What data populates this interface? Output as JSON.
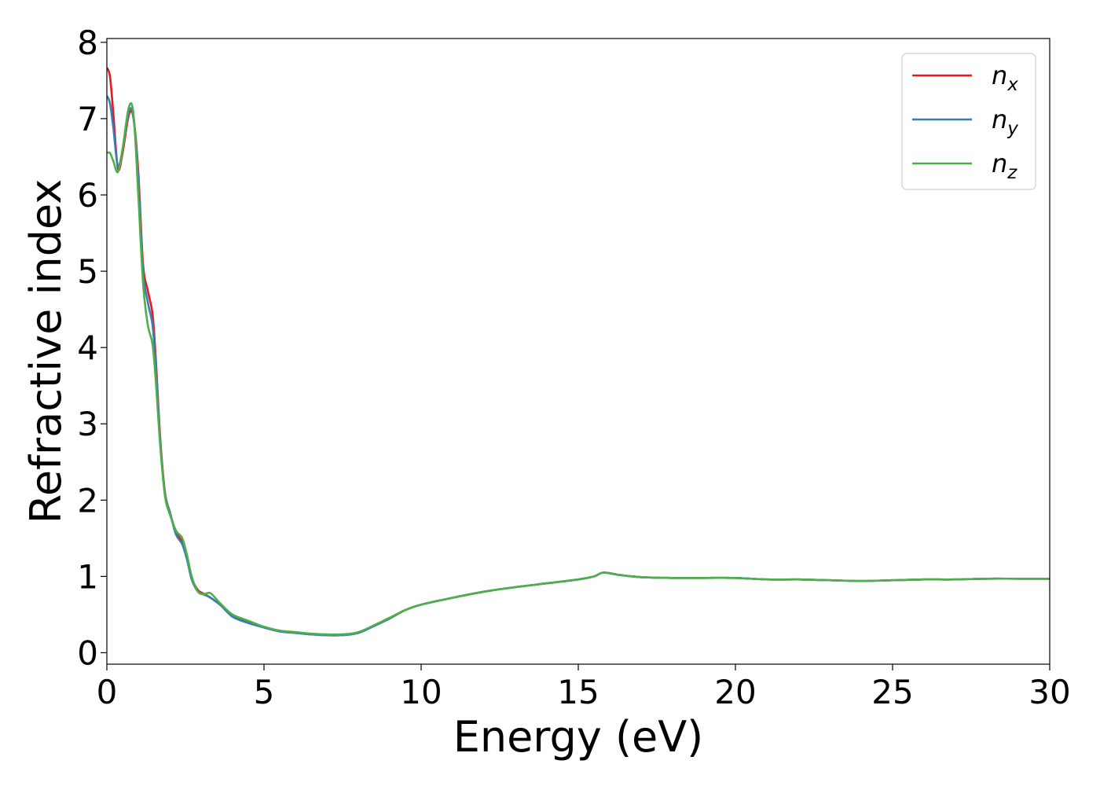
{
  "chart_data": {
    "type": "line",
    "title": "",
    "xlabel": "Energy (eV)",
    "ylabel": "Refractive index",
    "xlim": [
      0,
      30
    ],
    "ylim": [
      -0.15,
      8.05
    ],
    "xticks": [
      0,
      5,
      10,
      15,
      20,
      25,
      30
    ],
    "yticks": [
      0,
      1,
      2,
      3,
      4,
      5,
      6,
      7,
      8
    ],
    "grid": false,
    "legend_position": "top-right",
    "series": [
      {
        "name": "n_x",
        "base": "n",
        "sub": "x",
        "color": "#e41a1c",
        "x": [
          0,
          0.1,
          0.2,
          0.35,
          0.5,
          0.7,
          0.85,
          1.0,
          1.15,
          1.3,
          1.45,
          1.55,
          1.7,
          1.85,
          2.0,
          2.2,
          2.4,
          2.55,
          2.7,
          2.9,
          3.1,
          3.3,
          3.6,
          4.0,
          4.5,
          5.0,
          5.5,
          6.0,
          6.5,
          7.0,
          7.5,
          8.0,
          8.5,
          9.0,
          9.5,
          10.0,
          11.0,
          12.0,
          13.0,
          14.0,
          15.0,
          15.5,
          15.8,
          16.3,
          17.0,
          18.0,
          19.0,
          20.0,
          21.0,
          22.0,
          23.0,
          24.0,
          25.0,
          26.0,
          27.0,
          28.0,
          29.0,
          30.0
        ],
        "y": [
          7.67,
          7.55,
          7.1,
          6.35,
          6.55,
          7.05,
          7.0,
          6.3,
          5.1,
          4.75,
          4.45,
          3.9,
          2.8,
          2.1,
          1.85,
          1.58,
          1.45,
          1.25,
          0.98,
          0.82,
          0.77,
          0.72,
          0.63,
          0.48,
          0.4,
          0.33,
          0.28,
          0.26,
          0.24,
          0.23,
          0.23,
          0.26,
          0.35,
          0.45,
          0.56,
          0.63,
          0.72,
          0.8,
          0.86,
          0.91,
          0.96,
          1.0,
          1.05,
          1.02,
          0.99,
          0.98,
          0.98,
          0.98,
          0.96,
          0.96,
          0.95,
          0.94,
          0.95,
          0.96,
          0.96,
          0.97,
          0.97,
          0.97
        ]
      },
      {
        "name": "n_y",
        "base": "n",
        "sub": "y",
        "color": "#377eb8",
        "x": [
          0,
          0.1,
          0.2,
          0.35,
          0.5,
          0.7,
          0.85,
          1.0,
          1.15,
          1.3,
          1.45,
          1.55,
          1.7,
          1.85,
          2.0,
          2.2,
          2.4,
          2.55,
          2.7,
          2.9,
          3.1,
          3.3,
          3.6,
          4.0,
          4.5,
          5.0,
          5.5,
          6.0,
          6.5,
          7.0,
          7.5,
          8.0,
          8.5,
          9.0,
          9.5,
          10.0,
          11.0,
          12.0,
          13.0,
          14.0,
          15.0,
          15.5,
          15.8,
          16.3,
          17.0,
          18.0,
          19.0,
          20.0,
          21.0,
          22.0,
          23.0,
          24.0,
          25.0,
          26.0,
          27.0,
          28.0,
          29.0,
          30.0
        ],
        "y": [
          7.3,
          7.2,
          6.9,
          6.38,
          6.6,
          7.1,
          7.0,
          6.2,
          5.0,
          4.6,
          4.3,
          3.8,
          2.75,
          2.08,
          1.85,
          1.55,
          1.42,
          1.22,
          0.96,
          0.8,
          0.76,
          0.72,
          0.63,
          0.47,
          0.39,
          0.33,
          0.28,
          0.26,
          0.24,
          0.23,
          0.23,
          0.26,
          0.35,
          0.45,
          0.56,
          0.63,
          0.72,
          0.8,
          0.86,
          0.91,
          0.96,
          1.0,
          1.05,
          1.02,
          0.99,
          0.98,
          0.98,
          0.98,
          0.96,
          0.96,
          0.95,
          0.94,
          0.95,
          0.96,
          0.96,
          0.97,
          0.97,
          0.97
        ]
      },
      {
        "name": "n_z",
        "base": "n",
        "sub": "z",
        "color": "#4daf4a",
        "x": [
          0,
          0.1,
          0.2,
          0.35,
          0.5,
          0.7,
          0.85,
          1.0,
          1.15,
          1.3,
          1.45,
          1.55,
          1.7,
          1.85,
          2.0,
          2.2,
          2.4,
          2.55,
          2.7,
          2.9,
          3.1,
          3.3,
          3.6,
          4.0,
          4.5,
          5.0,
          5.5,
          6.0,
          6.5,
          7.0,
          7.5,
          8.0,
          8.5,
          9.0,
          9.5,
          10.0,
          11.0,
          12.0,
          13.0,
          14.0,
          15.0,
          15.5,
          15.8,
          16.3,
          17.0,
          18.0,
          19.0,
          20.0,
          21.0,
          22.0,
          23.0,
          24.0,
          25.0,
          26.0,
          27.0,
          28.0,
          29.0,
          30.0
        ],
        "y": [
          6.55,
          6.55,
          6.45,
          6.3,
          6.6,
          7.15,
          7.05,
          6.0,
          4.85,
          4.3,
          4.05,
          3.6,
          2.7,
          2.05,
          1.82,
          1.6,
          1.5,
          1.28,
          1.0,
          0.8,
          0.77,
          0.78,
          0.65,
          0.5,
          0.42,
          0.34,
          0.29,
          0.27,
          0.25,
          0.24,
          0.24,
          0.27,
          0.36,
          0.46,
          0.56,
          0.63,
          0.72,
          0.8,
          0.86,
          0.91,
          0.96,
          1.0,
          1.05,
          1.02,
          0.99,
          0.98,
          0.98,
          0.98,
          0.96,
          0.96,
          0.95,
          0.94,
          0.95,
          0.96,
          0.96,
          0.97,
          0.97,
          0.97
        ]
      }
    ]
  }
}
